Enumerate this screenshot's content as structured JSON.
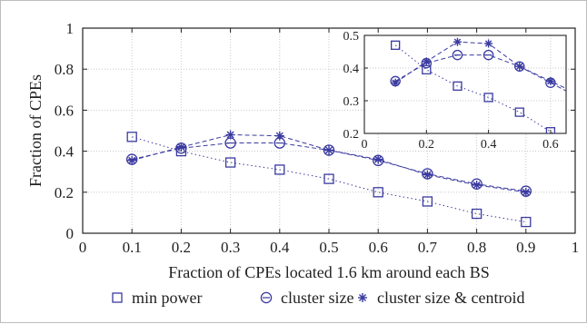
{
  "chart_data": [
    {
      "type": "line",
      "xlabel": "Fraction of CPEs located 1.6 km around each BS",
      "ylabel": "Fraction of CPEs",
      "xlim": [
        0,
        1
      ],
      "ylim": [
        0,
        1
      ],
      "xticks": [
        "0",
        "0.1",
        "0.2",
        "0.3",
        "0.4",
        "0.5",
        "0.6",
        "0.7",
        "0.8",
        "0.9",
        "1"
      ],
      "yticks": [
        "0",
        "0.2",
        "0.4",
        "0.6",
        "0.8",
        "1"
      ],
      "grid": true,
      "legend_position": "bottom",
      "x": [
        0.1,
        0.2,
        0.3,
        0.4,
        0.5,
        0.6,
        0.7,
        0.8,
        0.9
      ],
      "series": [
        {
          "name": "min power",
          "marker": "square",
          "line": "dotted",
          "values": [
            0.47,
            0.4,
            0.345,
            0.31,
            0.265,
            0.2,
            0.155,
            0.095,
            0.055
          ]
        },
        {
          "name": "cluster size",
          "marker": "circle",
          "line": "dashed",
          "values": [
            0.36,
            0.415,
            0.44,
            0.44,
            0.405,
            0.355,
            0.29,
            0.24,
            0.205
          ]
        },
        {
          "name": "cluster size & centroid",
          "marker": "asterisk",
          "line": "dashed",
          "values": [
            0.355,
            0.42,
            0.48,
            0.475,
            0.405,
            0.36,
            0.285,
            0.235,
            0.2
          ]
        }
      ]
    },
    {
      "type": "line",
      "xlim": [
        0,
        0.65
      ],
      "ylim": [
        0.2,
        0.5
      ],
      "xticks": [
        "0",
        "0.2",
        "0.4",
        "0.6"
      ],
      "yticks": [
        "0.2",
        "0.3",
        "0.4",
        "0.5"
      ],
      "grid": true,
      "x": [
        0.1,
        0.2,
        0.3,
        0.4,
        0.5,
        0.6
      ],
      "series": [
        {
          "name": "min power",
          "marker": "square",
          "line": "dotted",
          "values": [
            0.47,
            0.395,
            0.345,
            0.31,
            0.265,
            0.205
          ]
        },
        {
          "name": "cluster size",
          "marker": "circle",
          "line": "dashed",
          "values": [
            0.36,
            0.415,
            0.44,
            0.44,
            0.405,
            0.355
          ]
        },
        {
          "name": "cluster size & centroid",
          "marker": "asterisk",
          "line": "dashed",
          "values": [
            0.355,
            0.42,
            0.48,
            0.475,
            0.405,
            0.36
          ]
        }
      ]
    }
  ],
  "legend": {
    "items": [
      {
        "label": "min power",
        "marker": "square"
      },
      {
        "label": "cluster size",
        "marker": "circle"
      },
      {
        "label": "cluster size & centroid",
        "marker": "asterisk"
      }
    ]
  },
  "colors": {
    "series": "#3a3aa0",
    "grid": "#c8c8c8",
    "axis": "#222222"
  }
}
